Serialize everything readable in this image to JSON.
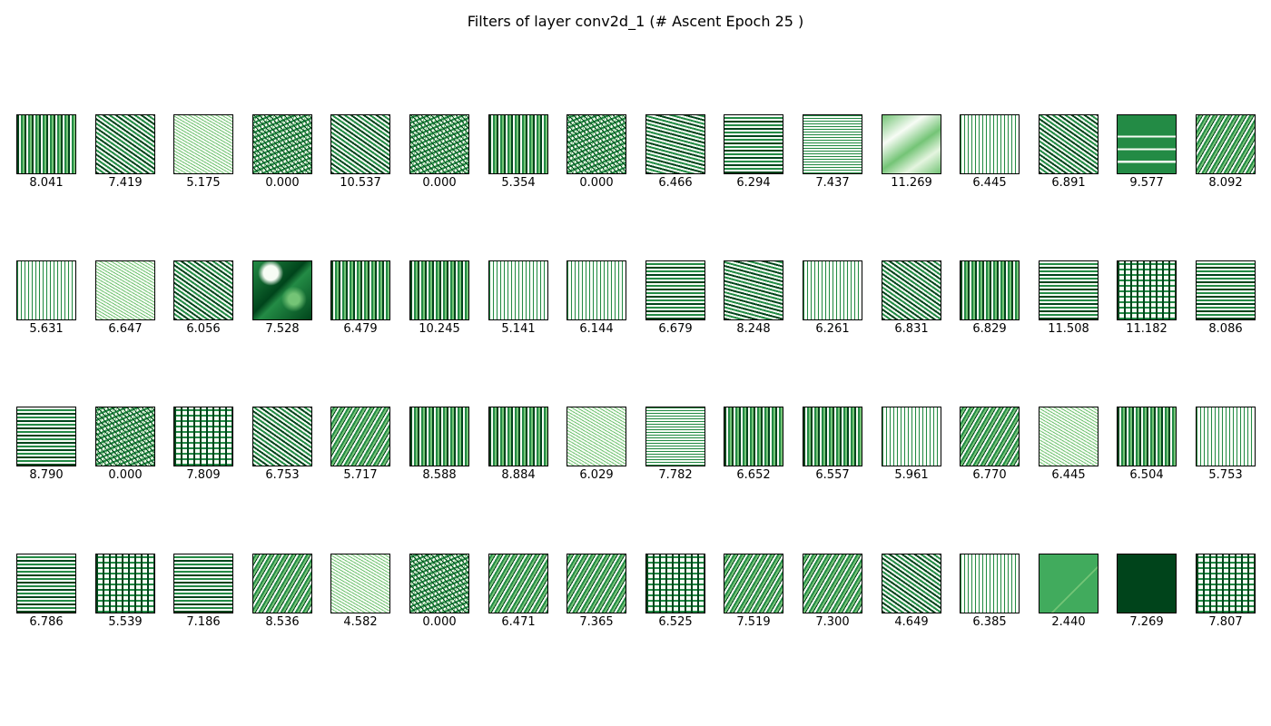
{
  "title": "Filters of layer conv2d_1 (# Ascent Epoch 25 )",
  "colors": {
    "dark": "#00441b",
    "mid": "#238b45",
    "light": "#74c476",
    "pale": "#e5f5e0",
    "white": "#f7fcf5"
  },
  "filters": [
    {
      "value": "8.041",
      "pattern": "vertical-stripes"
    },
    {
      "value": "7.419",
      "pattern": "diagonal-stripes"
    },
    {
      "value": "5.175",
      "pattern": "fine-diagonal"
    },
    {
      "value": "0.000",
      "pattern": "noise"
    },
    {
      "value": "10.537",
      "pattern": "diagonal-stripes"
    },
    {
      "value": "0.000",
      "pattern": "noise"
    },
    {
      "value": "5.354",
      "pattern": "vertical-stripes"
    },
    {
      "value": "0.000",
      "pattern": "noise"
    },
    {
      "value": "6.466",
      "pattern": "wavy-horizontal"
    },
    {
      "value": "6.294",
      "pattern": "horizontal-stripes"
    },
    {
      "value": "7.437",
      "pattern": "horizontal-fine"
    },
    {
      "value": "11.269",
      "pattern": "smooth-light"
    },
    {
      "value": "6.445",
      "pattern": "mesh"
    },
    {
      "value": "6.891",
      "pattern": "diagonal-stripes"
    },
    {
      "value": "9.577",
      "pattern": "solid-bands"
    },
    {
      "value": "8.092",
      "pattern": "anti-diagonal"
    },
    {
      "value": "5.631",
      "pattern": "mesh"
    },
    {
      "value": "6.647",
      "pattern": "fine-diagonal"
    },
    {
      "value": "6.056",
      "pattern": "diagonal-stripes"
    },
    {
      "value": "7.528",
      "pattern": "smooth-dark"
    },
    {
      "value": "6.479",
      "pattern": "vertical-stripes"
    },
    {
      "value": "10.245",
      "pattern": "vertical-stripes"
    },
    {
      "value": "5.141",
      "pattern": "mesh"
    },
    {
      "value": "6.144",
      "pattern": "mesh"
    },
    {
      "value": "6.679",
      "pattern": "horizontal-stripes"
    },
    {
      "value": "8.248",
      "pattern": "wavy-horizontal"
    },
    {
      "value": "6.261",
      "pattern": "mesh"
    },
    {
      "value": "6.831",
      "pattern": "diagonal-stripes"
    },
    {
      "value": "6.829",
      "pattern": "vertical-stripes"
    },
    {
      "value": "11.508",
      "pattern": "horizontal-stripes"
    },
    {
      "value": "11.182",
      "pattern": "maze"
    },
    {
      "value": "8.086",
      "pattern": "horizontal-stripes"
    },
    {
      "value": "8.790",
      "pattern": "horizontal-stripes"
    },
    {
      "value": "0.000",
      "pattern": "noise"
    },
    {
      "value": "7.809",
      "pattern": "maze"
    },
    {
      "value": "6.753",
      "pattern": "diagonal-stripes"
    },
    {
      "value": "5.717",
      "pattern": "anti-diagonal"
    },
    {
      "value": "8.588",
      "pattern": "vertical-stripes"
    },
    {
      "value": "8.884",
      "pattern": "vertical-stripes"
    },
    {
      "value": "6.029",
      "pattern": "fine-diagonal"
    },
    {
      "value": "7.782",
      "pattern": "horizontal-fine"
    },
    {
      "value": "6.652",
      "pattern": "vertical-stripes"
    },
    {
      "value": "6.557",
      "pattern": "vertical-stripes"
    },
    {
      "value": "5.961",
      "pattern": "mesh"
    },
    {
      "value": "6.770",
      "pattern": "anti-diagonal"
    },
    {
      "value": "6.445",
      "pattern": "fine-diagonal"
    },
    {
      "value": "6.504",
      "pattern": "vertical-stripes"
    },
    {
      "value": "5.753",
      "pattern": "mesh"
    },
    {
      "value": "6.786",
      "pattern": "horizontal-stripes"
    },
    {
      "value": "5.539",
      "pattern": "maze"
    },
    {
      "value": "7.186",
      "pattern": "horizontal-stripes"
    },
    {
      "value": "8.536",
      "pattern": "anti-diagonal"
    },
    {
      "value": "4.582",
      "pattern": "fine-diagonal"
    },
    {
      "value": "0.000",
      "pattern": "noise"
    },
    {
      "value": "6.471",
      "pattern": "anti-diagonal"
    },
    {
      "value": "7.365",
      "pattern": "anti-diagonal"
    },
    {
      "value": "6.525",
      "pattern": "maze"
    },
    {
      "value": "7.519",
      "pattern": "anti-diagonal"
    },
    {
      "value": "7.300",
      "pattern": "anti-diagonal"
    },
    {
      "value": "4.649",
      "pattern": "diagonal-stripes"
    },
    {
      "value": "6.385",
      "pattern": "mesh"
    },
    {
      "value": "2.440",
      "pattern": "flat-mid"
    },
    {
      "value": "7.269",
      "pattern": "flat-dark"
    },
    {
      "value": "7.807",
      "pattern": "maze"
    }
  ]
}
